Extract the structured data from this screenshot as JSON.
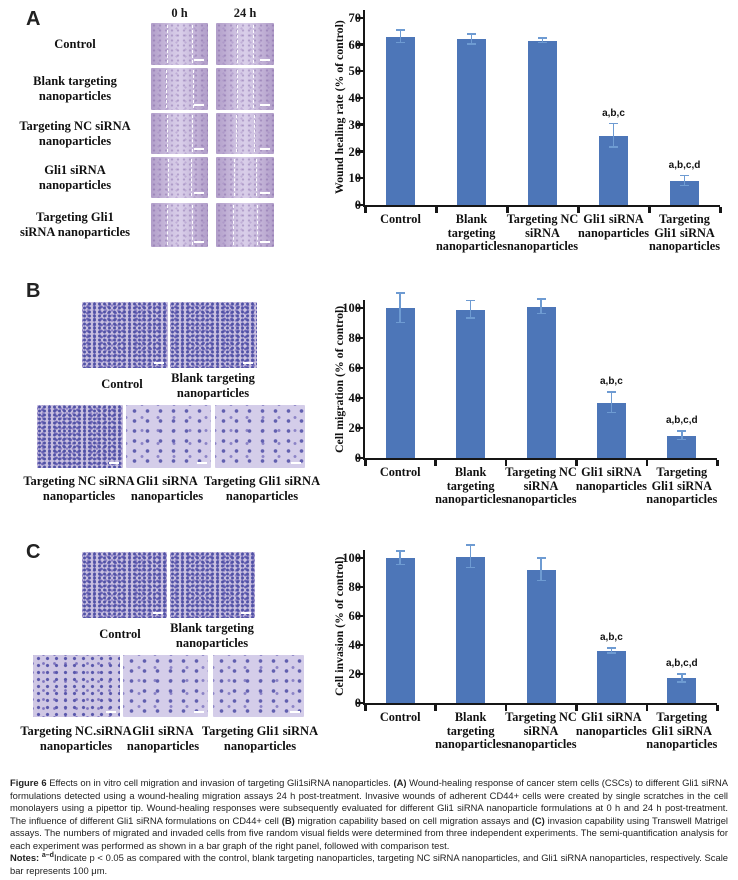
{
  "panels": [
    {
      "label": "A",
      "type": "wound-healing",
      "column_headers": [
        "0 h",
        "24 h"
      ],
      "rows": [
        {
          "label_lines": [
            "Control"
          ],
          "images": [
            {
              "name": "wound-control-0h",
              "lines": [
                28,
                72
              ]
            },
            {
              "name": "wound-control-24h",
              "lines": [
                37,
                63
              ]
            }
          ]
        },
        {
          "label_lines": [
            "Blank targeting",
            "nanoparticles"
          ],
          "images": [
            {
              "name": "wound-blank-0h",
              "lines": [
                27,
                73
              ]
            },
            {
              "name": "wound-blank-24h",
              "lines": [
                36,
                64
              ]
            }
          ]
        },
        {
          "label_lines": [
            "Targeting NC siRNA",
            "nanoparticles"
          ],
          "images": [
            {
              "name": "wound-nc-0h",
              "lines": [
                28,
                72
              ]
            },
            {
              "name": "wound-nc-24h",
              "lines": [
                35,
                65
              ]
            }
          ]
        },
        {
          "label_lines": [
            "Gli1 siRNA",
            "nanoparticles"
          ],
          "images": [
            {
              "name": "wound-gli1-0h",
              "lines": [
                29,
                71
              ]
            },
            {
              "name": "wound-gli1-24h",
              "lines": [
                31,
                69
              ]
            }
          ]
        },
        {
          "label_lines": [
            "Targeting Gli1",
            "siRNA nanoparticles"
          ],
          "images": [
            {
              "name": "wound-targeting-gli1-0h",
              "lines": [
                28,
                72
              ]
            },
            {
              "name": "wound-targeting-gli1-24h",
              "lines": [
                29,
                71
              ]
            }
          ]
        }
      ]
    },
    {
      "label": "B",
      "type": "cell-migration",
      "images": [
        {
          "label_lines": [
            "Control"
          ],
          "density": "dense"
        },
        {
          "label_lines": [
            "Blank targeting",
            "nanoparticles"
          ],
          "density": "dense"
        },
        {
          "label_lines": [
            "Targeting NC siRNA",
            "nanoparticles"
          ],
          "density": "dense"
        },
        {
          "label_lines": [
            "Gli1 siRNA",
            "nanoparticles"
          ],
          "density": "sparse"
        },
        {
          "label_lines": [
            "Targeting Gli1 siRNA",
            "nanoparticles"
          ],
          "density": "sparse"
        }
      ]
    },
    {
      "label": "C",
      "type": "cell-invasion",
      "images": [
        {
          "label_lines": [
            "Control"
          ],
          "density": "dense"
        },
        {
          "label_lines": [
            "Blank targeting",
            "nanoparticles"
          ],
          "density": "dense"
        },
        {
          "label_lines": [
            "Targeting NC.siRNA",
            "nanoparticles"
          ],
          "density": "medium"
        },
        {
          "label_lines": [
            "Gli1 siRNA",
            "nanoparticles"
          ],
          "density": "sparse"
        },
        {
          "label_lines": [
            "Targeting Gli1 siRNA",
            "nanoparticles"
          ],
          "density": "sparse"
        }
      ]
    }
  ],
  "chart_data": [
    {
      "id": "A",
      "type": "bar",
      "title": "",
      "xlabel": "",
      "ylabel": "Wound healing rate (% of control)",
      "ylim": [
        0,
        70
      ],
      "yticks": [
        0,
        10,
        20,
        30,
        40,
        50,
        60,
        70
      ],
      "grid": false,
      "legend": "none",
      "categories": [
        "Control",
        "Blank targeting nanoparticles",
        "Targeting NC siRNA nanoparticles",
        "Gli1 siRNA nanoparticles",
        "Targeting Gli1 siRNA nanoparticles"
      ],
      "category_lines": [
        [
          "Control"
        ],
        [
          "Blank",
          "targeting",
          "nanoparticles"
        ],
        [
          "Targeting NC",
          "siRNA",
          "nanoparticles"
        ],
        [
          "Gli1 siRNA",
          "nanoparticles"
        ],
        [
          "Targeting",
          "Gli1 siRNA",
          "nanoparticles"
        ]
      ],
      "values": [
        63,
        62,
        61.5,
        26,
        9
      ],
      "errors": [
        2.5,
        2,
        1,
        4.5,
        2
      ],
      "annotations": [
        "",
        "",
        "",
        "a,b,c",
        "a,b,c,d"
      ],
      "bar_color": "#4d76b8",
      "error_color": "#6e9bd2"
    },
    {
      "id": "B",
      "type": "bar",
      "title": "",
      "xlabel": "",
      "ylabel": "Cell migration (% of control)",
      "ylim": [
        0,
        100
      ],
      "yticks": [
        0,
        20,
        40,
        60,
        80,
        100
      ],
      "grid": false,
      "legend": "none",
      "categories": [
        "Control",
        "Blank targeting nanoparticles",
        "Targeting NC siRNA nanoparticles",
        "Gli1 siRNA nanoparticles",
        "Targeting Gli1 siRNA nanoparticles"
      ],
      "category_lines": [
        [
          "Control"
        ],
        [
          "Blank",
          "targeting",
          "nanoparticles"
        ],
        [
          "Targeting NC",
          "siRNA",
          "nanoparticles"
        ],
        [
          "Gli1 siRNA",
          "nanoparticles"
        ],
        [
          "Targeting",
          "Gli1 siRNA",
          "nanoparticles"
        ]
      ],
      "values": [
        100,
        99,
        101,
        37,
        15
      ],
      "errors": [
        10,
        6,
        5,
        7,
        3
      ],
      "annotations": [
        "",
        "",
        "",
        "a,b,c",
        "a,b,c,d"
      ],
      "bar_color": "#4d76b8",
      "error_color": "#6e9bd2"
    },
    {
      "id": "C",
      "type": "bar",
      "title": "",
      "xlabel": "",
      "ylabel": "Cell invasion (% of control)",
      "ylim": [
        0,
        100
      ],
      "yticks": [
        0,
        20,
        40,
        60,
        80,
        100
      ],
      "grid": false,
      "legend": "none",
      "categories": [
        "Control",
        "Blank targeting nanoparticles",
        "Targeting NC siRNA nanoparticles",
        "Gli1 siRNA nanoparticles",
        "Targeting Gli1 siRNA nanoparticles"
      ],
      "category_lines": [
        [
          "Control"
        ],
        [
          "Blank",
          "targeting",
          "nanoparticles"
        ],
        [
          "Targeting NC",
          "siRNA",
          "nanoparticles"
        ],
        [
          "Gli1 siRNA",
          "nanoparticles"
        ],
        [
          "Targeting",
          "Gli1 siRNA",
          "nanoparticles"
        ]
      ],
      "values": [
        100,
        101,
        92,
        36,
        17
      ],
      "errors": [
        5,
        8,
        8,
        2,
        3
      ],
      "annotations": [
        "",
        "",
        "",
        "a,b,c",
        "a,b,c,d"
      ],
      "bar_color": "#4d76b8",
      "error_color": "#6e9bd2"
    }
  ],
  "caption": {
    "paragraphs": [
      {
        "name": "figure-caption",
        "segments": [
          {
            "text": "Figure 6 ",
            "bold": true
          },
          {
            "text": "Effects on in vitro cell migration and invasion of targeting Gli1siRNA nanoparticles. "
          },
          {
            "text": "(A)",
            "bold": true
          },
          {
            "text": " Wound-healing response of cancer stem cells (CSCs) to different Gli1 siRNA formulations detected using a wound-healing migration assays 24 h post-treatment. Invasive wounds of adherent CD44+ cells were created by single scratches in the cell monolayers using a pipettor tip. Wound-healing responses were subsequently evaluated for different Gli1 siRNA nanoparticle formulations at 0 h and 24 h post-treatment. The influence of different Gli1 siRNA formulations on CD44+ cell "
          },
          {
            "text": "(B)",
            "bold": true
          },
          {
            "text": " migration capability based on cell migration assays and "
          },
          {
            "text": "(C)",
            "bold": true
          },
          {
            "text": " invasion capability using Transwell Matrigel assays. The numbers of migrated and invaded cells from five random visual fields were determined from three independent experiments. The semi-quantification analysis for each experiment was performed as shown in a bar graph of the right panel, followed with comparison test."
          }
        ]
      },
      {
        "name": "figure-notes",
        "segments": [
          {
            "text": "Notes: ",
            "bold": true
          },
          {
            "text": "a–d",
            "sup": true
          },
          {
            "text": "Indicate p < 0.05 as compared with the control, blank targeting nanoparticles, targeting NC siRNA nanoparticles, and Gli1 siRNA nanoparticles, respectively. Scale bar represents 100 μm."
          }
        ]
      }
    ]
  }
}
